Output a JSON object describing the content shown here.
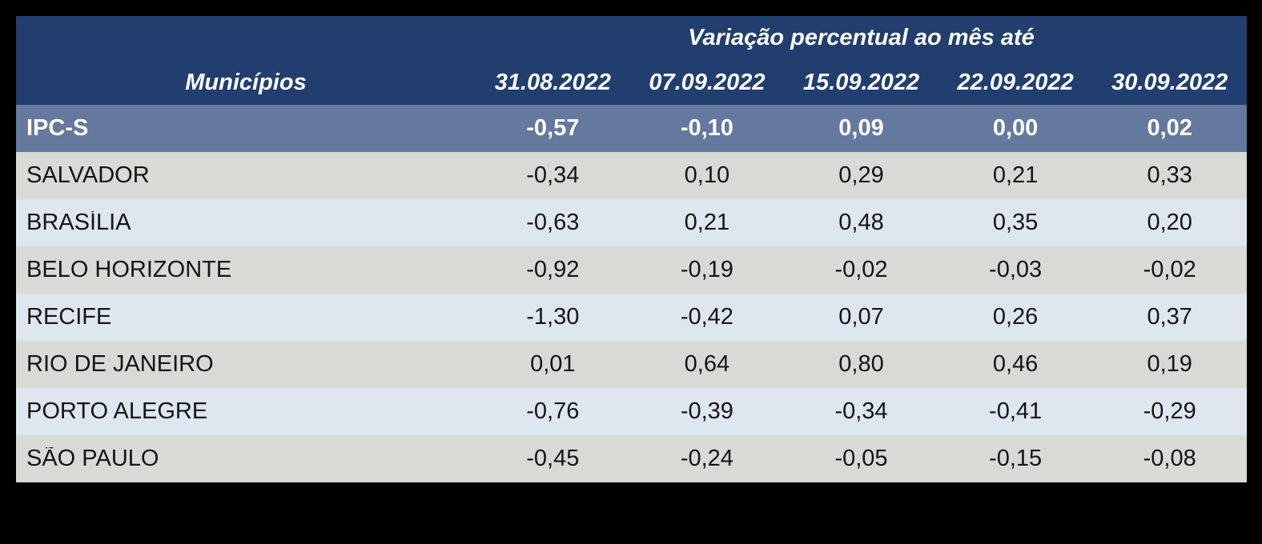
{
  "table": {
    "title": "Variação percentual ao mês até",
    "municipios_header": "Municípios",
    "date_headers": [
      "31.08.2022",
      "07.09.2022",
      "15.09.2022",
      "22.09.2022",
      "30.09.2022"
    ],
    "ipcs_row": {
      "label": "IPC-S",
      "values": [
        "-0,57",
        "-0,10",
        "0,09",
        "0,00",
        "0,02"
      ]
    },
    "rows": [
      {
        "label": "SALVADOR",
        "values": [
          "-0,34",
          "0,10",
          "0,29",
          "0,21",
          "0,33"
        ]
      },
      {
        "label": "BRASÍLIA",
        "values": [
          "-0,63",
          "0,21",
          "0,48",
          "0,35",
          "0,20"
        ]
      },
      {
        "label": "BELO HORIZONTE",
        "values": [
          "-0,92",
          "-0,19",
          "-0,02",
          "-0,03",
          "-0,02"
        ]
      },
      {
        "label": "RECIFE",
        "values": [
          "-1,30",
          "-0,42",
          "0,07",
          "0,26",
          "0,37"
        ]
      },
      {
        "label": "RIO DE JANEIRO",
        "values": [
          "0,01",
          "0,64",
          "0,80",
          "0,46",
          "0,19"
        ]
      },
      {
        "label": "PORTO ALEGRE",
        "values": [
          "-0,76",
          "-0,39",
          "-0,34",
          "-0,41",
          "-0,29"
        ]
      },
      {
        "label": "SÃO PAULO",
        "values": [
          "-0,45",
          "-0,24",
          "-0,05",
          "-0,15",
          "-0,08"
        ]
      }
    ],
    "colors": {
      "canvas_bg": "#000000",
      "header_bg": "#213E6F",
      "ipcs_row_bg": "#65799F",
      "row_gray": "#D9D9D5",
      "row_blue": "#DEE6EF",
      "header_text": "#FFFFFF",
      "body_text": "#141414"
    }
  }
}
